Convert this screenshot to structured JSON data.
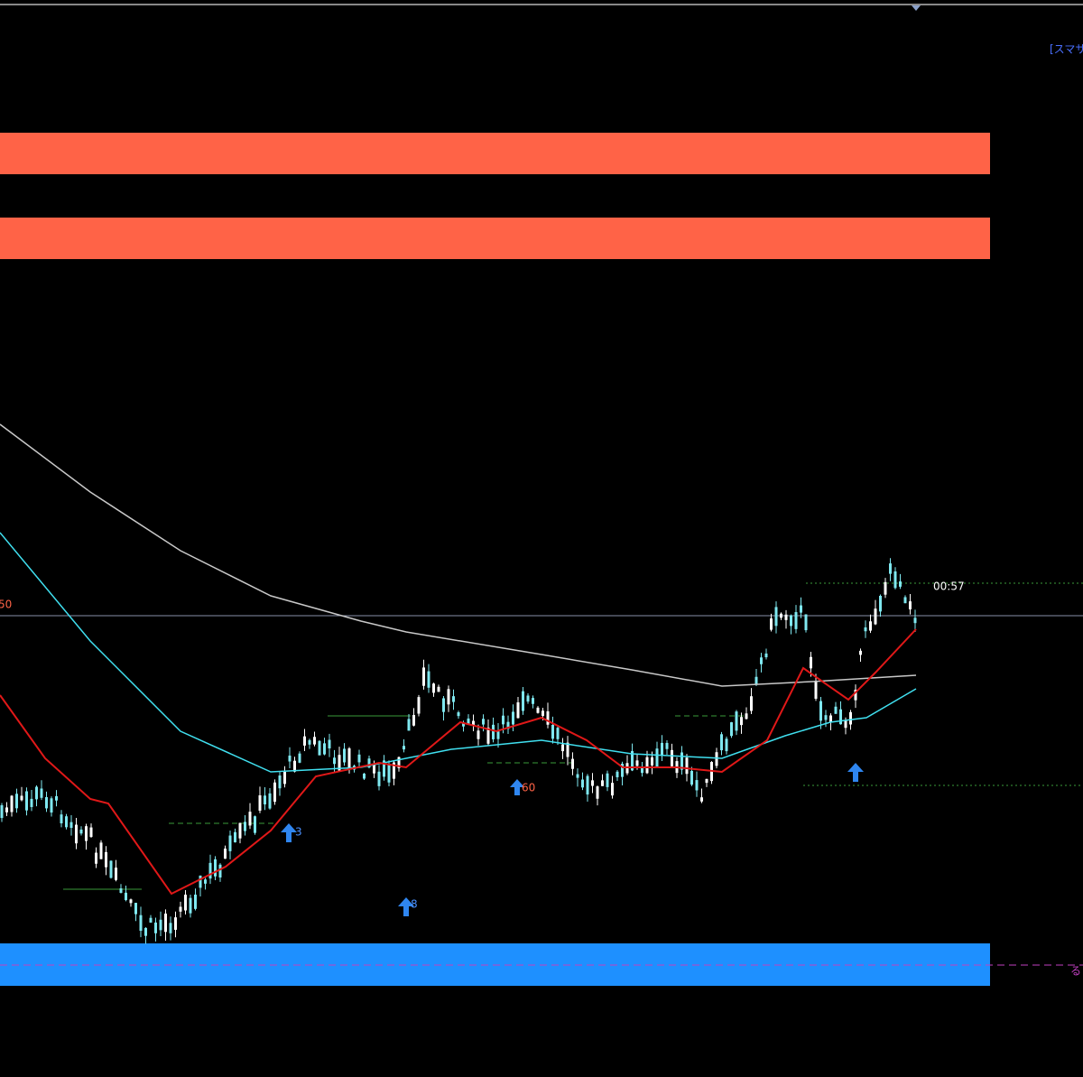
{
  "header": {
    "indicator_label": "[スマサ"
  },
  "timer": "00:57",
  "labels": [
    "50",
    "3",
    "8",
    "60"
  ],
  "line_label": "る"
}
